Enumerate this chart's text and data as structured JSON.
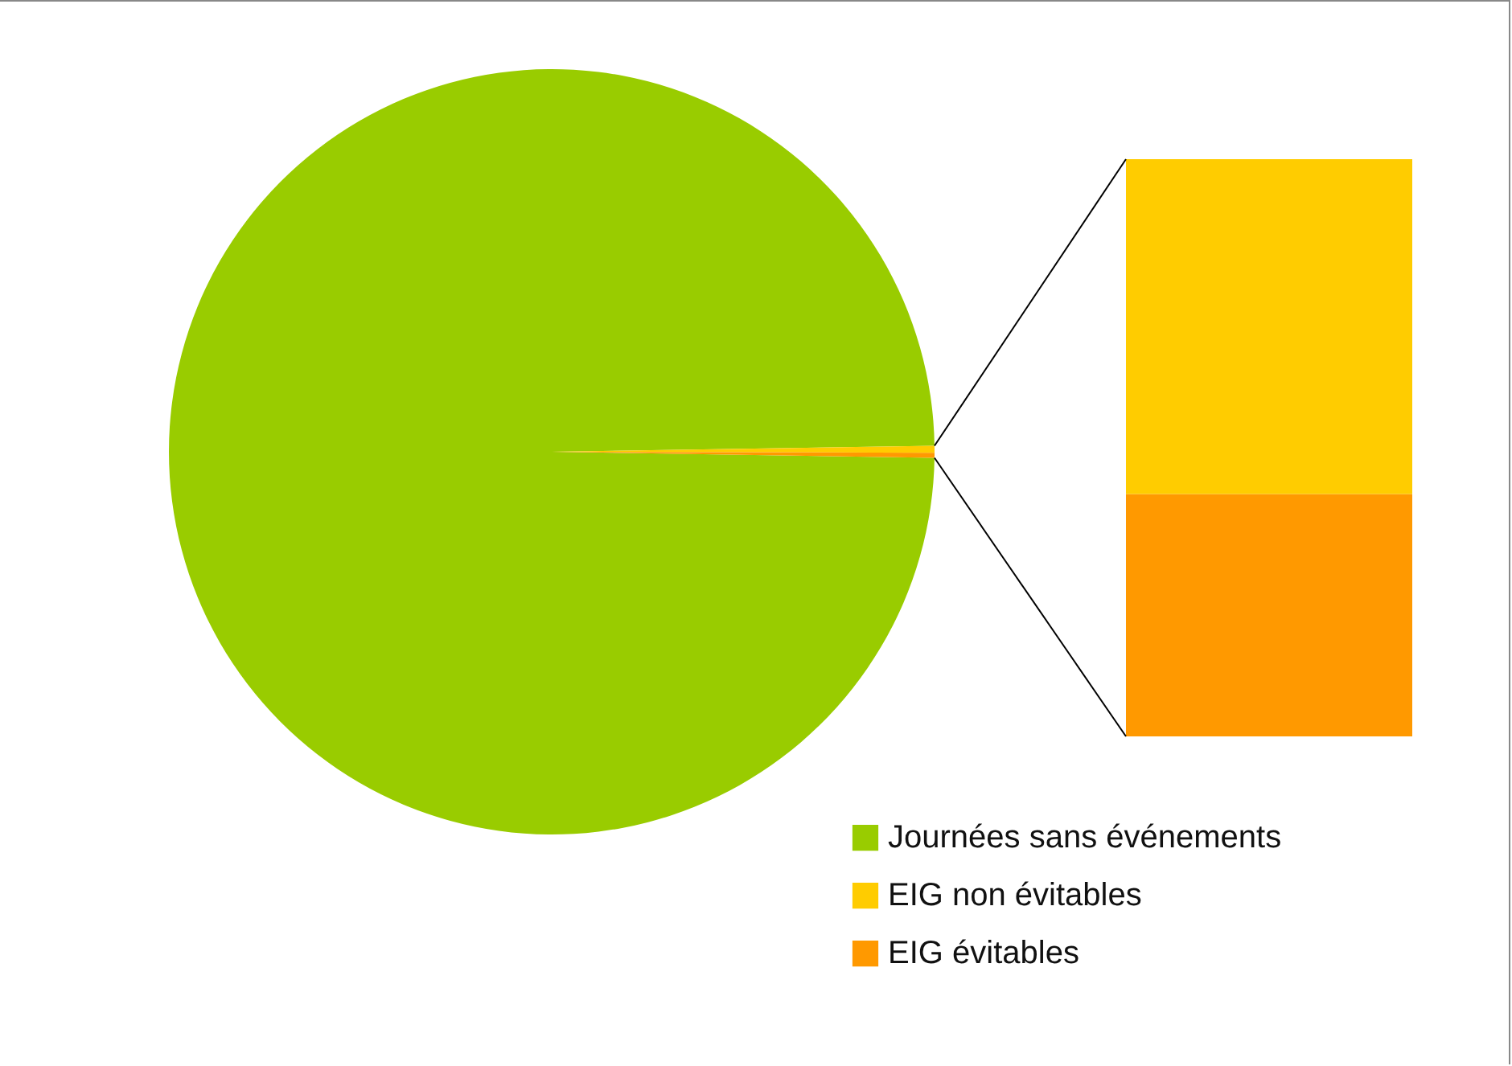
{
  "chart_data": {
    "type": "pie",
    "categories": [
      "Journées sans événements",
      "EIG non évitables",
      "EIG évitables"
    ],
    "values": [
      99.5,
      0.29,
      0.21
    ],
    "colors": [
      "#99cc00",
      "#ffcc00",
      "#ff9900"
    ],
    "legend": "bottom right"
  }
}
